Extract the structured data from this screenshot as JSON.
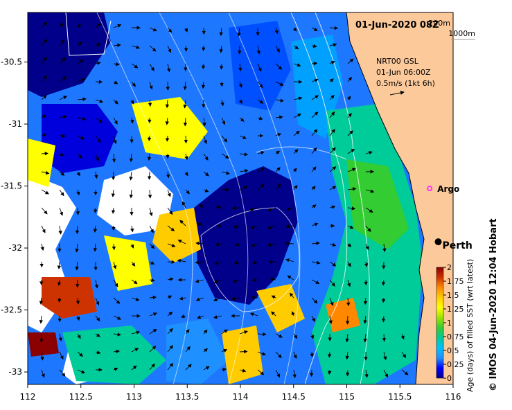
{
  "map": {
    "title": "01-Jun-2020 08Z",
    "depth_contours": [
      "200m",
      "1000m"
    ],
    "vector_legend": {
      "product": "NRT00 GSL",
      "time": "01-Jun 06:00Z",
      "scale": "0.5m/s (1kt 6h)"
    },
    "markers": [
      {
        "name": "Argo",
        "lon": 115.78,
        "lat": -31.52,
        "color": "#ff33ff"
      },
      {
        "name": "Perth",
        "lon": 115.86,
        "lat": -31.95,
        "color": "#000000"
      }
    ],
    "x_ticks": [
      "112",
      "112.5",
      "113",
      "113.5",
      "114",
      "114.5",
      "115",
      "115.5",
      "116"
    ],
    "y_ticks": [
      "-30.5",
      "-31",
      "-31.5",
      "-32",
      "-32.5",
      "-33"
    ],
    "lon_range": [
      112,
      116
    ],
    "lat_range": [
      -33.1,
      -30.1
    ],
    "land_color": "#fcc99b"
  },
  "colorbar": {
    "label": "Age (days) of filled SST (wrt latest)",
    "ticks": [
      "0",
      "0.25",
      "0.5",
      "0.75",
      "1",
      "1.25",
      "1.5",
      "1.75",
      "2"
    ],
    "range": [
      0,
      2
    ],
    "colors": [
      "#00008b",
      "#0000ff",
      "#1e90ff",
      "#00bfff",
      "#00cc99",
      "#33cc33",
      "#99e600",
      "#ffff00",
      "#ffcc00",
      "#ff8800",
      "#cc3300",
      "#8b0000"
    ]
  },
  "credit": "© IMOS 04-Jun-2020 12:04 Hobart"
}
